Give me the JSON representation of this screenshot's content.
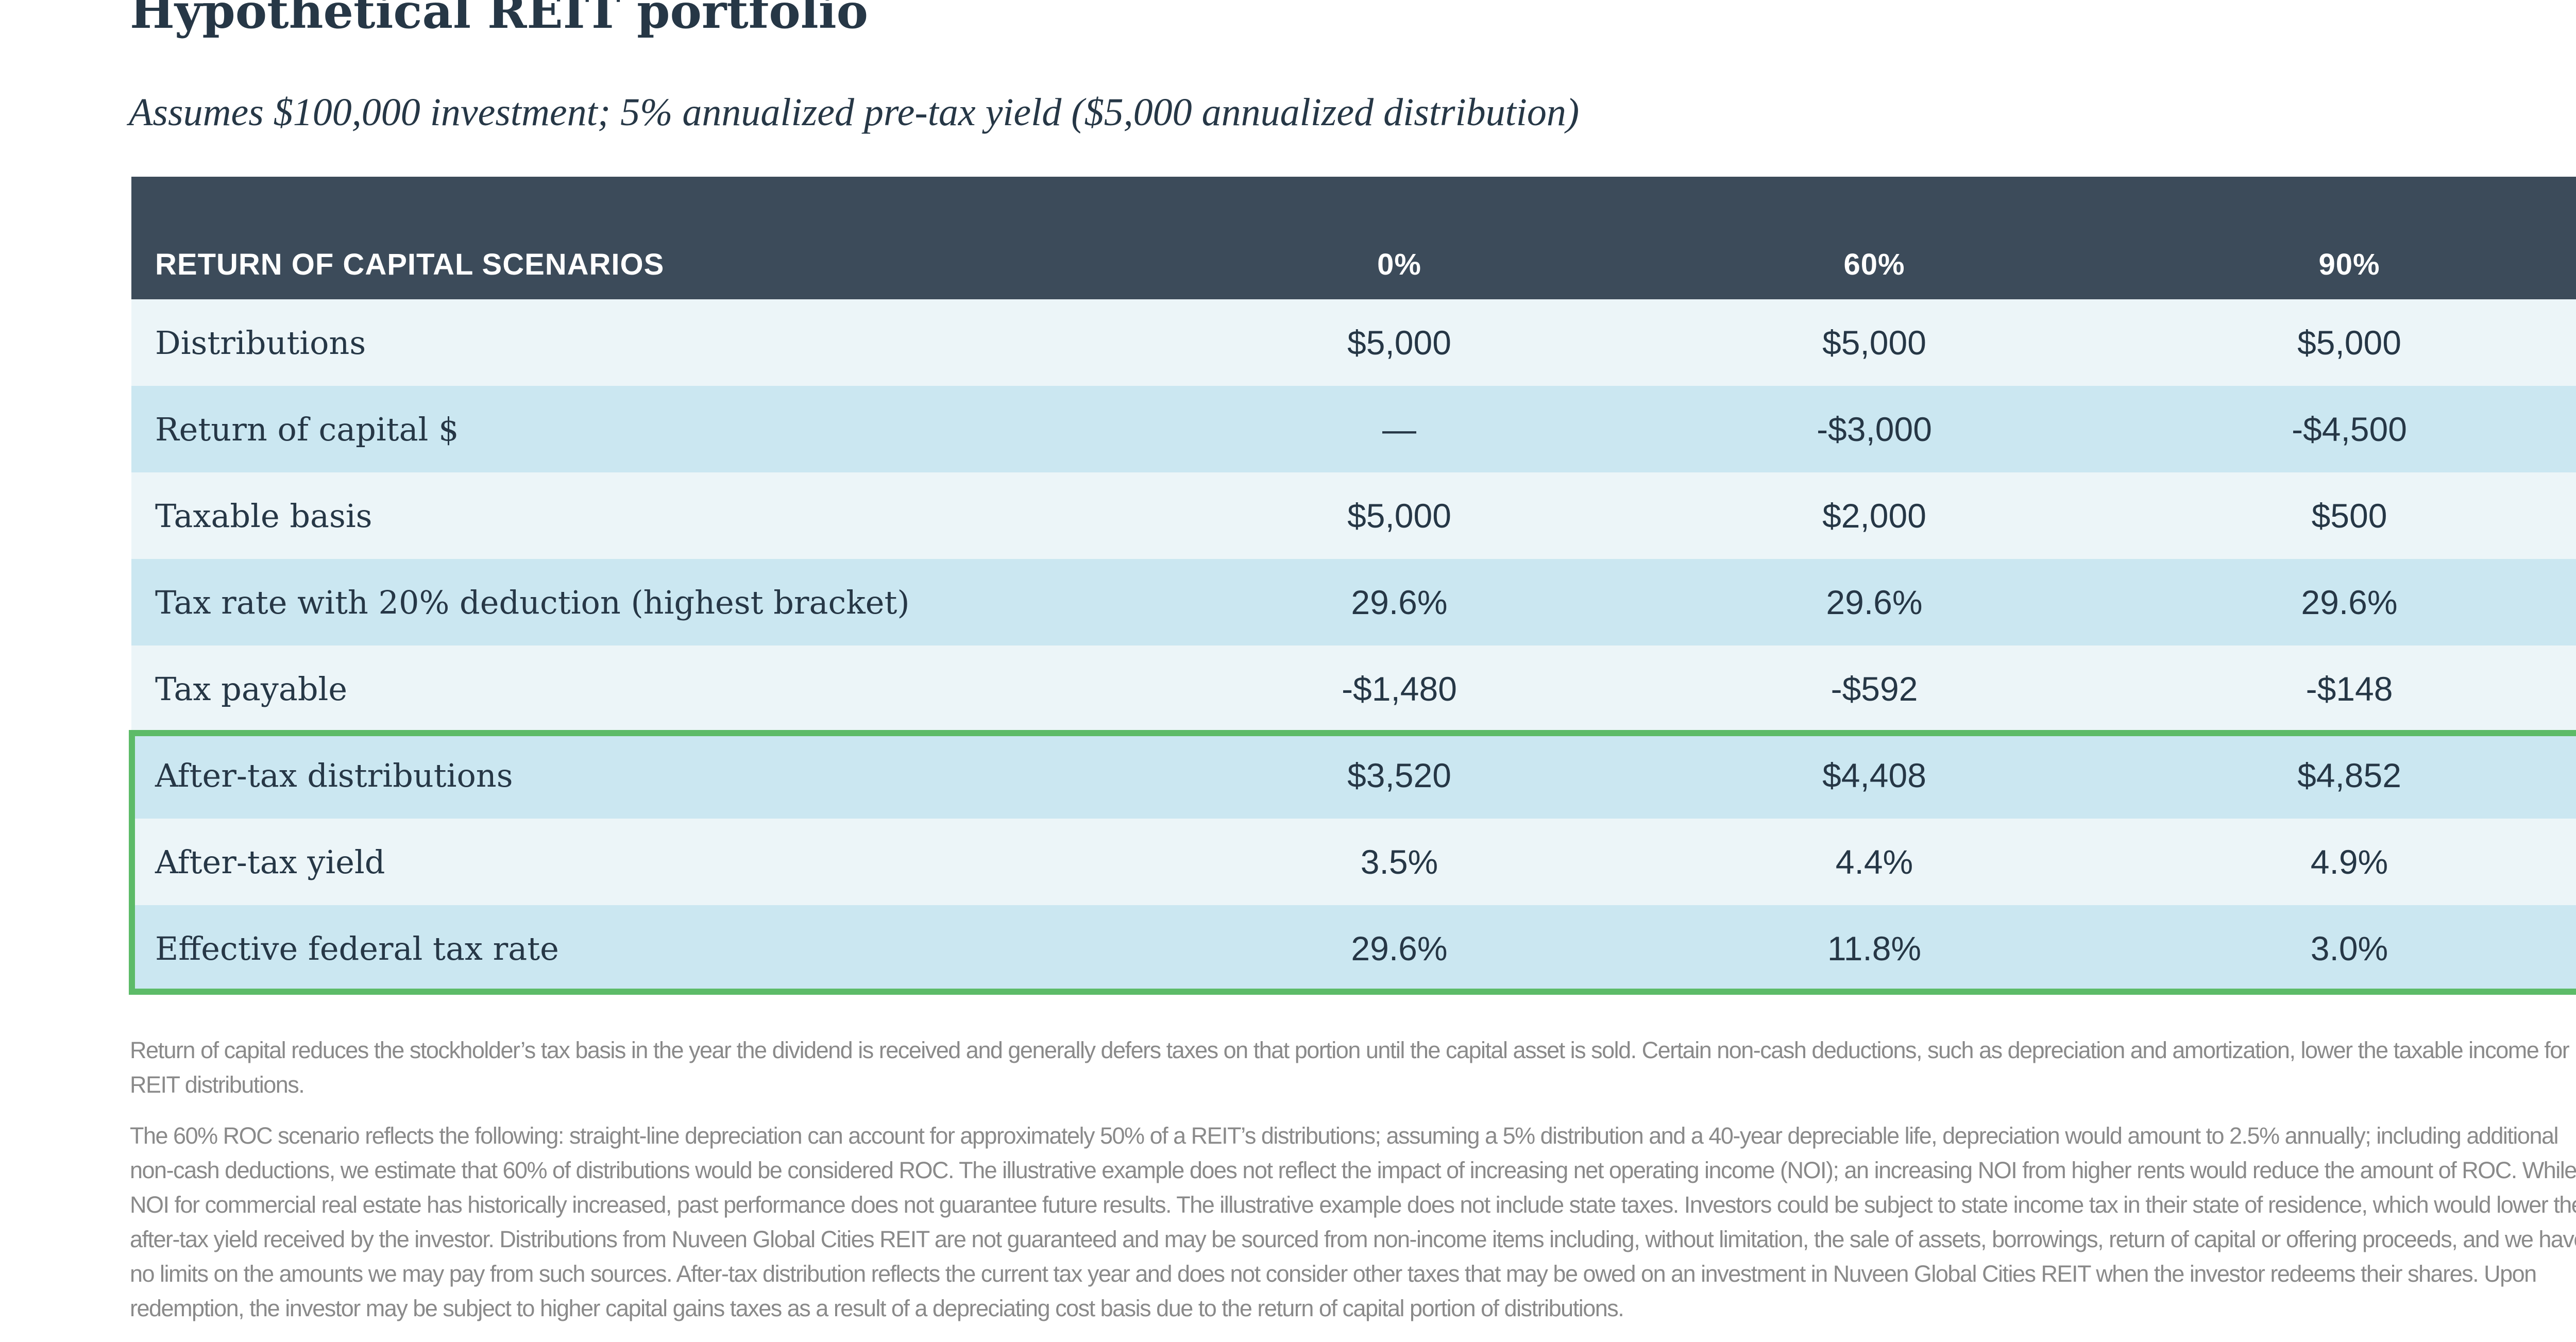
{
  "title": "Hypothetical REIT portfolio",
  "subtitle": "Assumes $100,000 investment; 5% annualized pre-tax yield ($5,000 annualized distribution)",
  "table": {
    "headers": [
      "RETURN OF CAPITAL SCENARIOS",
      "0%",
      "60%",
      "90%"
    ],
    "rows": [
      {
        "label": "Distributions",
        "values": [
          "$5,000",
          "$5,000",
          "$5,000"
        ]
      },
      {
        "label": "Return of capital $",
        "values": [
          "—",
          "-$3,000",
          "-$4,500"
        ]
      },
      {
        "label": "Taxable basis",
        "values": [
          "$5,000",
          "$2,000",
          "$500"
        ]
      },
      {
        "label": "Tax rate with 20% deduction (highest bracket)",
        "values": [
          "29.6%",
          "29.6%",
          "29.6%"
        ]
      },
      {
        "label": "Tax payable",
        "values": [
          "-$1,480",
          "-$592",
          "-$148"
        ]
      },
      {
        "label": "After-tax distributions",
        "values": [
          "$3,520",
          "$4,408",
          "$4,852"
        ]
      },
      {
        "label": "After-tax yield",
        "values": [
          "3.5%",
          "4.4%",
          "4.9%"
        ]
      },
      {
        "label": "Effective federal tax rate",
        "values": [
          "29.6%",
          "11.8%",
          "3.0%"
        ]
      }
    ],
    "highlight_color": "#5dbb68",
    "header_color": "#3c4b5a"
  },
  "notes": [
    "Return of capital reduces the stockholder’s tax basis in the year the dividend is received and generally defers taxes on that portion until the capital asset is sold. Certain non-cash deductions, such as depreciation and amortization, lower the taxable income for REIT distributions.",
    "The 60% ROC scenario reflects the following: straight-line depreciation can account for approximately 50% of a REIT’s distributions; assuming a 5% distribution and a 40-year depreciable life, depreciation would amount to 2.5% annually; including additional non-cash deductions, we estimate that 60% of distributions would be considered ROC. The illustrative example does not reflect the impact of increasing net operating income (NOI); an increasing NOI from higher rents would reduce the amount of ROC. While NOI for commercial real estate has historically increased, past performance does not guarantee future results. The illustrative example does not include state taxes. Investors could be subject to state income tax in their state of residence, which would lower the after-tax yield received by the investor. Distributions from Nuveen Global Cities REIT are not guaranteed and may be sourced from non-income items including, without limitation, the sale of assets, borrowings, return of capital or offering proceeds, and we have no limits on the amounts we may pay from such sources. After-tax distribution reflects the current tax year and does not consider other taxes that may be owed on an investment in Nuveen Global Cities REIT when the investor redeems their shares. Upon redemption, the investor may be subject to higher capital gains taxes as a result of a depreciating cost basis due to the return of capital portion of distributions."
  ]
}
